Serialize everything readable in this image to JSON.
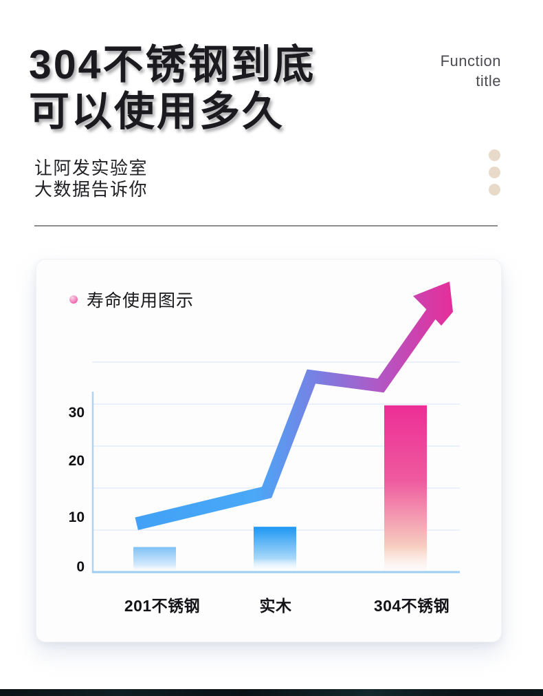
{
  "header": {
    "title_line1": "304不锈钢到底",
    "title_line2": "可以使用多久",
    "corner_label_line1": "Function",
    "corner_label_line2": "title",
    "subtitle_line1": "让阿发实验室",
    "subtitle_line2": "大数据告诉你"
  },
  "chart_data": {
    "type": "bar",
    "title": "寿命使用图示",
    "categories": [
      "201不锈钢",
      "实木",
      "304不锈钢"
    ],
    "values": [
      4,
      8,
      32
    ],
    "y_ticks": [
      "0",
      "10",
      "20",
      "30"
    ],
    "ylim": [
      0,
      35
    ],
    "xlabel": "",
    "ylabel": "",
    "grid": "horizontal",
    "legend_position": "top-left",
    "annotation": "decorative gradient trend line rising from ~9 at 201不锈钢 to an arrow pointing up-right above 304不锈钢",
    "trend_norm_points": [
      [
        0.121,
        8.6
      ],
      [
        0.475,
        14.8
      ],
      [
        0.596,
        37.7
      ],
      [
        0.785,
        35.9
      ],
      [
        0.937,
        51.6
      ]
    ],
    "colors": {
      "bar_201": "#7fc1f6",
      "bar_wood": "#1e97f3",
      "bar_304": "#ec2e96",
      "trend_start": "#41a1f6",
      "trend_mid": "#7a7ee2",
      "trend_end": "#e42f9a",
      "axis": "#a2d0f4",
      "gridline": "#e4edf9"
    }
  }
}
